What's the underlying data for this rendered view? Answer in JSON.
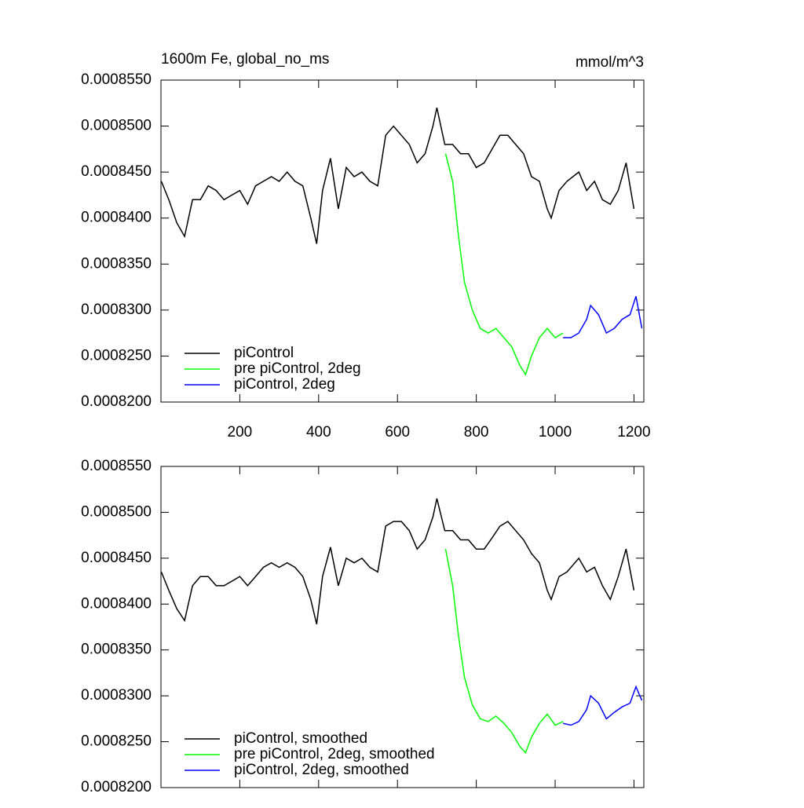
{
  "chart_data": [
    {
      "type": "line",
      "title": "1600m Fe, global_no_ms",
      "units": "mmol/m^3",
      "xlim": [
        0,
        1225
      ],
      "ylim": [
        0.00082,
        0.000855
      ],
      "xticks": [
        200,
        400,
        600,
        800,
        1000,
        1200
      ],
      "show_xtick_labels": true,
      "yticks": [
        {
          "value": 0.00082,
          "label": "0.0008200"
        },
        {
          "value": 0.000825,
          "label": "0.0008250"
        },
        {
          "value": 0.00083,
          "label": "0.0008300"
        },
        {
          "value": 0.000835,
          "label": "0.0008350"
        },
        {
          "value": 0.00084,
          "label": "0.0008400"
        },
        {
          "value": 0.000845,
          "label": "0.0008450"
        },
        {
          "value": 0.00085,
          "label": "0.0008500"
        },
        {
          "value": 0.000855,
          "label": "0.0008550"
        }
      ],
      "series": [
        {
          "name": "piControl",
          "color": "#000000",
          "x": [
            1,
            20,
            40,
            60,
            80,
            100,
            120,
            140,
            160,
            180,
            200,
            220,
            240,
            260,
            280,
            300,
            320,
            340,
            360,
            380,
            395,
            410,
            430,
            450,
            470,
            490,
            510,
            530,
            550,
            570,
            590,
            610,
            630,
            650,
            670,
            690,
            700,
            720,
            740,
            760,
            780,
            800,
            820,
            840,
            860,
            880,
            900,
            920,
            940,
            960,
            980,
            990,
            1010,
            1030,
            1060,
            1080,
            1100,
            1120,
            1140,
            1160,
            1180,
            1200
          ],
          "values": [
            0.000844,
            0.000842,
            0.0008395,
            0.000838,
            0.000842,
            0.000842,
            0.0008435,
            0.000843,
            0.000842,
            0.0008425,
            0.000843,
            0.0008415,
            0.0008435,
            0.000844,
            0.0008445,
            0.000844,
            0.000845,
            0.000844,
            0.0008435,
            0.00084,
            0.0008372,
            0.000843,
            0.0008465,
            0.000841,
            0.0008455,
            0.0008445,
            0.000845,
            0.000844,
            0.0008435,
            0.000849,
            0.00085,
            0.000849,
            0.000848,
            0.000846,
            0.000847,
            0.00085,
            0.000852,
            0.000848,
            0.000848,
            0.000847,
            0.000847,
            0.0008455,
            0.000846,
            0.0008475,
            0.000849,
            0.000849,
            0.000848,
            0.000847,
            0.0008445,
            0.000844,
            0.000841,
            0.00084,
            0.000843,
            0.000844,
            0.000845,
            0.000843,
            0.000844,
            0.000842,
            0.0008415,
            0.000843,
            0.000846,
            0.000841
          ]
        },
        {
          "name": "pre piControl, 2deg",
          "color": "#00ff00",
          "x": [
            722,
            740,
            755,
            770,
            790,
            810,
            830,
            850,
            870,
            890,
            910,
            925,
            940,
            960,
            980,
            1000,
            1020
          ],
          "values": [
            0.000847,
            0.000844,
            0.000838,
            0.000833,
            0.00083,
            0.000828,
            0.0008275,
            0.000828,
            0.000827,
            0.000826,
            0.000824,
            0.000823,
            0.000825,
            0.000827,
            0.000828,
            0.000827,
            0.0008275
          ]
        },
        {
          "name": "piControl, 2deg",
          "color": "#0000ff",
          "x": [
            1020,
            1040,
            1060,
            1080,
            1090,
            1110,
            1130,
            1150,
            1170,
            1190,
            1205,
            1220
          ],
          "values": [
            0.000827,
            0.000827,
            0.0008275,
            0.000829,
            0.0008305,
            0.0008295,
            0.0008275,
            0.000828,
            0.000829,
            0.0008295,
            0.0008315,
            0.000828
          ]
        }
      ]
    },
    {
      "type": "line",
      "xlim": [
        0,
        1225
      ],
      "ylim": [
        0.00082,
        0.000855
      ],
      "xticks": [
        200,
        400,
        600,
        800,
        1000,
        1200
      ],
      "show_xtick_labels": false,
      "yticks": [
        {
          "value": 0.00082,
          "label": "0.0008200"
        },
        {
          "value": 0.000825,
          "label": "0.0008250"
        },
        {
          "value": 0.00083,
          "label": "0.0008300"
        },
        {
          "value": 0.000835,
          "label": "0.0008350"
        },
        {
          "value": 0.00084,
          "label": "0.0008400"
        },
        {
          "value": 0.000845,
          "label": "0.0008450"
        },
        {
          "value": 0.00085,
          "label": "0.0008500"
        },
        {
          "value": 0.000855,
          "label": "0.0008550"
        }
      ],
      "series": [
        {
          "name": "piControl, smoothed",
          "color": "#000000",
          "x": [
            1,
            20,
            40,
            60,
            80,
            100,
            120,
            140,
            160,
            180,
            200,
            220,
            240,
            260,
            280,
            300,
            320,
            340,
            360,
            380,
            395,
            410,
            430,
            450,
            470,
            490,
            510,
            530,
            550,
            570,
            590,
            610,
            630,
            650,
            670,
            690,
            700,
            720,
            740,
            760,
            780,
            800,
            820,
            840,
            860,
            880,
            900,
            920,
            940,
            960,
            980,
            990,
            1010,
            1030,
            1060,
            1080,
            1100,
            1120,
            1140,
            1160,
            1180,
            1200
          ],
          "values": [
            0.0008435,
            0.0008415,
            0.0008395,
            0.0008382,
            0.000842,
            0.000843,
            0.000843,
            0.000842,
            0.000842,
            0.0008425,
            0.000843,
            0.000842,
            0.000843,
            0.000844,
            0.0008445,
            0.000844,
            0.0008445,
            0.000844,
            0.000843,
            0.0008405,
            0.0008378,
            0.000843,
            0.0008462,
            0.000842,
            0.000845,
            0.0008445,
            0.000845,
            0.000844,
            0.0008435,
            0.0008485,
            0.000849,
            0.000849,
            0.000848,
            0.000846,
            0.000847,
            0.0008495,
            0.0008515,
            0.000848,
            0.000848,
            0.000847,
            0.000847,
            0.000846,
            0.000846,
            0.0008472,
            0.0008485,
            0.000849,
            0.000848,
            0.000847,
            0.0008455,
            0.0008445,
            0.0008415,
            0.0008405,
            0.000843,
            0.0008435,
            0.000845,
            0.0008435,
            0.000844,
            0.000842,
            0.0008405,
            0.000843,
            0.000846,
            0.0008415
          ]
        },
        {
          "name": "pre piControl, 2deg, smoothed",
          "color": "#00ff00",
          "x": [
            722,
            740,
            755,
            770,
            790,
            810,
            830,
            850,
            870,
            890,
            910,
            925,
            940,
            960,
            980,
            1000,
            1020
          ],
          "values": [
            0.000846,
            0.000842,
            0.0008365,
            0.000832,
            0.000829,
            0.0008275,
            0.0008272,
            0.0008278,
            0.000827,
            0.000826,
            0.0008245,
            0.0008238,
            0.0008255,
            0.000827,
            0.000828,
            0.0008268,
            0.0008272
          ]
        },
        {
          "name": "piControl, 2deg, smoothed",
          "color": "#0000ff",
          "x": [
            1020,
            1040,
            1060,
            1080,
            1090,
            1110,
            1130,
            1150,
            1170,
            1190,
            1205,
            1220
          ],
          "values": [
            0.000827,
            0.0008268,
            0.0008272,
            0.0008285,
            0.00083,
            0.0008292,
            0.0008275,
            0.0008282,
            0.0008288,
            0.0008292,
            0.000831,
            0.0008295
          ]
        }
      ]
    }
  ]
}
